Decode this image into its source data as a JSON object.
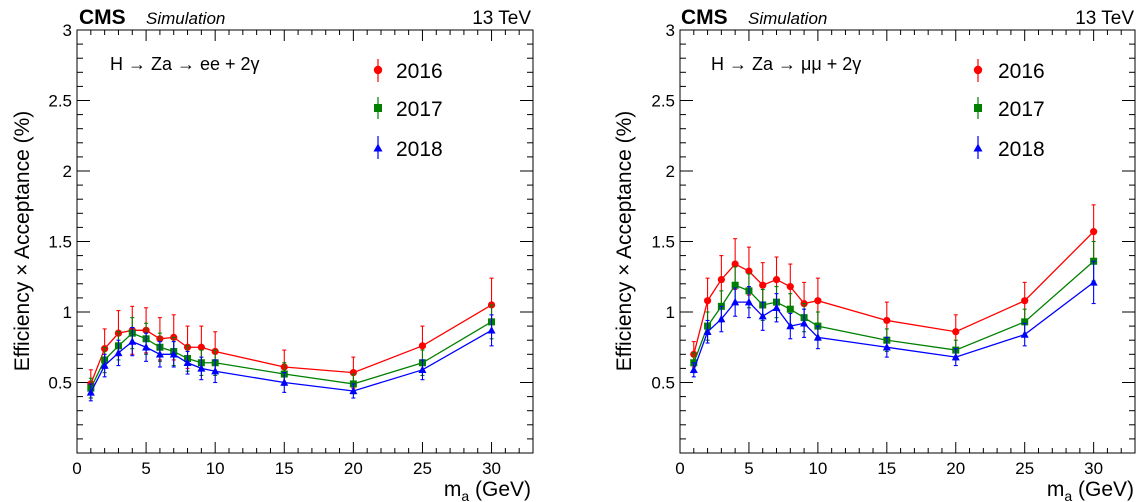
{
  "chart_data": [
    {
      "type": "line",
      "experiment": "CMS",
      "tag": "Simulation",
      "energy": "13 TeV",
      "process": "H → Za → ee + 2γ",
      "xlabel_main": "m",
      "xlabel_sub": "a",
      "xlabel_unit": " (GeV)",
      "ylabel": "Efficiency × Acceptance (%)",
      "xlim": [
        0,
        33
      ],
      "ylim": [
        0,
        3
      ],
      "xticks": [
        0,
        5,
        10,
        15,
        20,
        25,
        30
      ],
      "yticks": [
        0.5,
        1,
        1.5,
        2,
        2.5,
        3
      ],
      "legend_position": "top-right",
      "x": [
        1,
        2,
        3,
        4,
        5,
        6,
        7,
        8,
        9,
        10,
        15,
        20,
        25,
        30
      ],
      "series": [
        {
          "name": "2016",
          "color": "#ff0000",
          "marker": "circle",
          "values": [
            0.49,
            0.74,
            0.85,
            0.87,
            0.87,
            0.81,
            0.82,
            0.75,
            0.75,
            0.72,
            0.61,
            0.57,
            0.76,
            1.05
          ],
          "errors": [
            0.1,
            0.14,
            0.16,
            0.17,
            0.16,
            0.15,
            0.16,
            0.15,
            0.15,
            0.14,
            0.12,
            0.11,
            0.14,
            0.19
          ]
        },
        {
          "name": "2017",
          "color": "#008000",
          "marker": "square",
          "values": [
            0.46,
            0.66,
            0.76,
            0.85,
            0.81,
            0.75,
            0.72,
            0.67,
            0.64,
            0.64,
            0.56,
            0.49,
            0.64,
            0.93
          ],
          "errors": [
            0.07,
            0.09,
            0.1,
            0.11,
            0.11,
            0.1,
            0.1,
            0.09,
            0.09,
            0.09,
            0.08,
            0.07,
            0.09,
            0.12
          ]
        },
        {
          "name": "2018",
          "color": "#0000ff",
          "marker": "triangle",
          "values": [
            0.43,
            0.62,
            0.71,
            0.79,
            0.75,
            0.7,
            0.7,
            0.64,
            0.6,
            0.58,
            0.5,
            0.44,
            0.59,
            0.87
          ],
          "errors": [
            0.06,
            0.08,
            0.09,
            0.1,
            0.1,
            0.09,
            0.09,
            0.08,
            0.08,
            0.08,
            0.07,
            0.05,
            0.07,
            0.11
          ]
        }
      ]
    },
    {
      "type": "line",
      "experiment": "CMS",
      "tag": "Simulation",
      "energy": "13 TeV",
      "process": "H → Za → μμ + 2γ",
      "xlabel_main": "m",
      "xlabel_sub": "a",
      "xlabel_unit": " (GeV)",
      "ylabel": "Efficiency × Acceptance (%)",
      "xlim": [
        0,
        33
      ],
      "ylim": [
        0,
        3
      ],
      "xticks": [
        0,
        5,
        10,
        15,
        20,
        25,
        30
      ],
      "yticks": [
        0.5,
        1,
        1.5,
        2,
        2.5,
        3
      ],
      "legend_position": "top-right",
      "x": [
        1,
        2,
        3,
        4,
        5,
        6,
        7,
        8,
        9,
        10,
        15,
        20,
        25,
        30
      ],
      "series": [
        {
          "name": "2016",
          "color": "#ff0000",
          "marker": "circle",
          "values": [
            0.7,
            1.08,
            1.23,
            1.34,
            1.29,
            1.19,
            1.23,
            1.18,
            1.06,
            1.08,
            0.94,
            0.86,
            1.08,
            1.57
          ],
          "errors": [
            0.09,
            0.16,
            0.17,
            0.18,
            0.17,
            0.16,
            0.16,
            0.16,
            0.15,
            0.16,
            0.13,
            0.12,
            0.13,
            0.19
          ]
        },
        {
          "name": "2017",
          "color": "#008000",
          "marker": "square",
          "values": [
            0.64,
            0.9,
            1.04,
            1.19,
            1.15,
            1.05,
            1.07,
            1.02,
            0.96,
            0.9,
            0.8,
            0.73,
            0.93,
            1.36
          ],
          "errors": [
            0.07,
            0.1,
            0.11,
            0.13,
            0.12,
            0.11,
            0.11,
            0.11,
            0.1,
            0.1,
            0.08,
            0.07,
            0.09,
            0.14
          ]
        },
        {
          "name": "2018",
          "color": "#0000ff",
          "marker": "triangle",
          "values": [
            0.59,
            0.86,
            0.95,
            1.07,
            1.07,
            0.97,
            1.03,
            0.9,
            0.92,
            0.82,
            0.75,
            0.68,
            0.84,
            1.21
          ],
          "errors": [
            0.05,
            0.08,
            0.09,
            0.1,
            0.11,
            0.1,
            0.1,
            0.09,
            0.1,
            0.08,
            0.07,
            0.06,
            0.08,
            0.15
          ]
        }
      ]
    }
  ]
}
